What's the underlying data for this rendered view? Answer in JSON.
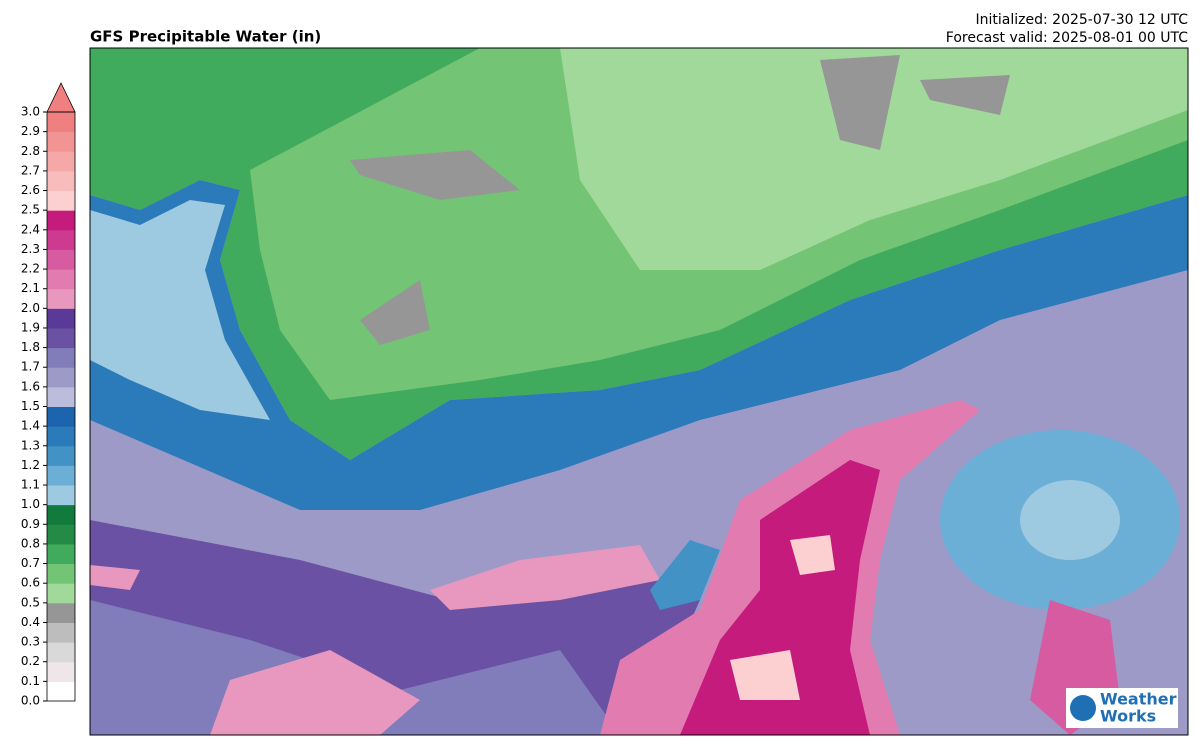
{
  "header": {
    "title": "GFS Precipitable Water (in)",
    "initialized": "Initialized: 2025-07-30 12 UTC",
    "valid": "Forecast valid: 2025-08-01 00 UTC"
  },
  "colorbar": {
    "labels": [
      "0.0",
      "0.1",
      "0.2",
      "0.3",
      "0.4",
      "0.5",
      "0.6",
      "0.7",
      "0.8",
      "0.9",
      "1.0",
      "1.1",
      "1.2",
      "1.3",
      "1.4",
      "1.5",
      "1.6",
      "1.7",
      "1.8",
      "1.9",
      "2.0",
      "2.1",
      "2.2",
      "2.3",
      "2.4",
      "2.5",
      "2.6",
      "2.7",
      "2.8",
      "2.9",
      "3.0"
    ],
    "colors": [
      "#ffffff",
      "#eee6e9",
      "#d9d9d9",
      "#bdbdbd",
      "#969696",
      "#a1d99b",
      "#74c476",
      "#41ab5d",
      "#238b45",
      "#117a3d",
      "#9ecae1",
      "#6baed6",
      "#4292c6",
      "#2b7bba",
      "#1c64ad",
      "#bcbddc",
      "#9e9ac8",
      "#807dba",
      "#6a51a3",
      "#5a3a98",
      "#e898bf",
      "#e27bb0",
      "#d65ba0",
      "#ce3a90",
      "#c51b7d",
      "#fcd0d0",
      "#f9bcbc",
      "#f6a8a8",
      "#f39494",
      "#f08080"
    ]
  },
  "logo": {
    "line1": "Weather",
    "line2": "Works"
  }
}
